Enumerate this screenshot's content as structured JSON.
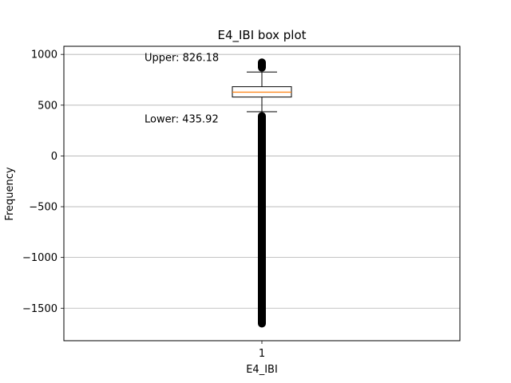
{
  "chart_data": {
    "type": "box",
    "title": "E4_IBI box plot",
    "xlabel": "E4_IBI",
    "ylabel": "Frequency",
    "categories": [
      "1"
    ],
    "ylim": [
      -1820,
      1080
    ],
    "yticks": [
      1000,
      500,
      0,
      -500,
      -1000,
      -1500
    ],
    "ytick_labels": [
      "1000",
      "500",
      "0",
      "−500",
      "−1000",
      "−1500"
    ],
    "grid": "horizontal",
    "box": {
      "category": "1",
      "q1": 580,
      "median": 628,
      "q3": 682,
      "whisker_low": 435.92,
      "whisker_high": 826.18,
      "outliers_low_range": [
        -1690,
        432
      ],
      "outliers_high_range": [
        830,
        960
      ]
    },
    "annotations": [
      {
        "text": "Upper: 826.18",
        "y": 975
      },
      {
        "text": "Lower: 435.92",
        "y": 370
      }
    ],
    "colors": {
      "median": "#ff7f0e",
      "box": "#000000",
      "grid": "#b0b0b0"
    }
  }
}
